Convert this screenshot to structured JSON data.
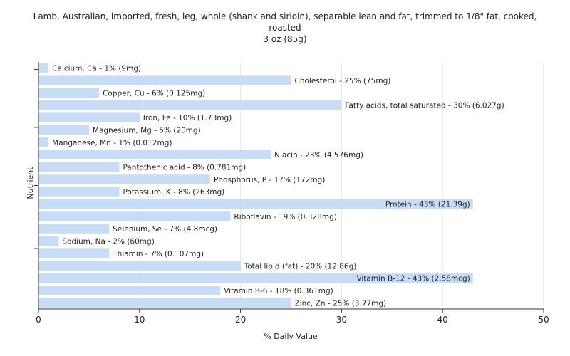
{
  "chart_data": {
    "type": "bar",
    "orientation": "horizontal",
    "title": "Lamb, Australian, imported, fresh, leg, whole (shank and sirloin), separable lean and fat, trimmed to 1/8\" fat, cooked, roasted",
    "title_lines": [
      "Lamb, Australian, imported, fresh, leg, whole (shank and sirloin), separable lean and fat, trimmed to 1/8\" fat, cooked,",
      "roasted"
    ],
    "subtitle": "3 oz (85g)",
    "xlabel": "% Daily Value",
    "ylabel": "Nutrient",
    "xlim": [
      0,
      50
    ],
    "xticks": [
      0,
      10,
      20,
      30,
      40,
      50
    ],
    "grid": true,
    "bar_color": "#c6dcf7",
    "categories": [
      "Calcium, Ca",
      "Cholesterol",
      "Copper, Cu",
      "Fatty acids, total saturated",
      "Iron, Fe",
      "Magnesium, Mg",
      "Manganese, Mn",
      "Niacin",
      "Pantothenic acid",
      "Phosphorus, P",
      "Potassium, K",
      "Protein",
      "Riboflavin",
      "Selenium, Se",
      "Sodium, Na",
      "Thiamin",
      "Total lipid (fat)",
      "Vitamin B-12",
      "Vitamin B-6",
      "Zinc, Zn"
    ],
    "values": [
      1,
      25,
      6,
      30,
      10,
      5,
      1,
      23,
      8,
      17,
      8,
      43,
      19,
      7,
      2,
      7,
      20,
      43,
      18,
      25
    ],
    "labels": [
      "Calcium, Ca - 1% (9mg)",
      "Cholesterol - 25% (75mg)",
      "Copper, Cu - 6% (0.125mg)",
      "Fatty acids, total saturated - 30% (6.027g)",
      "Iron, Fe - 10% (1.73mg)",
      "Magnesium, Mg - 5% (20mg)",
      "Manganese, Mn - 1% (0.012mg)",
      "Niacin - 23% (4.576mg)",
      "Pantothenic acid - 8% (0.781mg)",
      "Phosphorus, P - 17% (172mg)",
      "Potassium, K - 8% (263mg)",
      "Protein - 43% (21.39g)",
      "Riboflavin - 19% (0.328mg)",
      "Selenium, Se - 7% (4.8mcg)",
      "Sodium, Na - 2% (60mg)",
      "Thiamin - 7% (0.107mg)",
      "Total lipid (fat) - 20% (12.86g)",
      "Vitamin B-12 - 43% (2.58mcg)",
      "Vitamin B-6 - 18% (0.361mg)",
      "Zinc, Zn - 25% (3.77mg)"
    ]
  }
}
